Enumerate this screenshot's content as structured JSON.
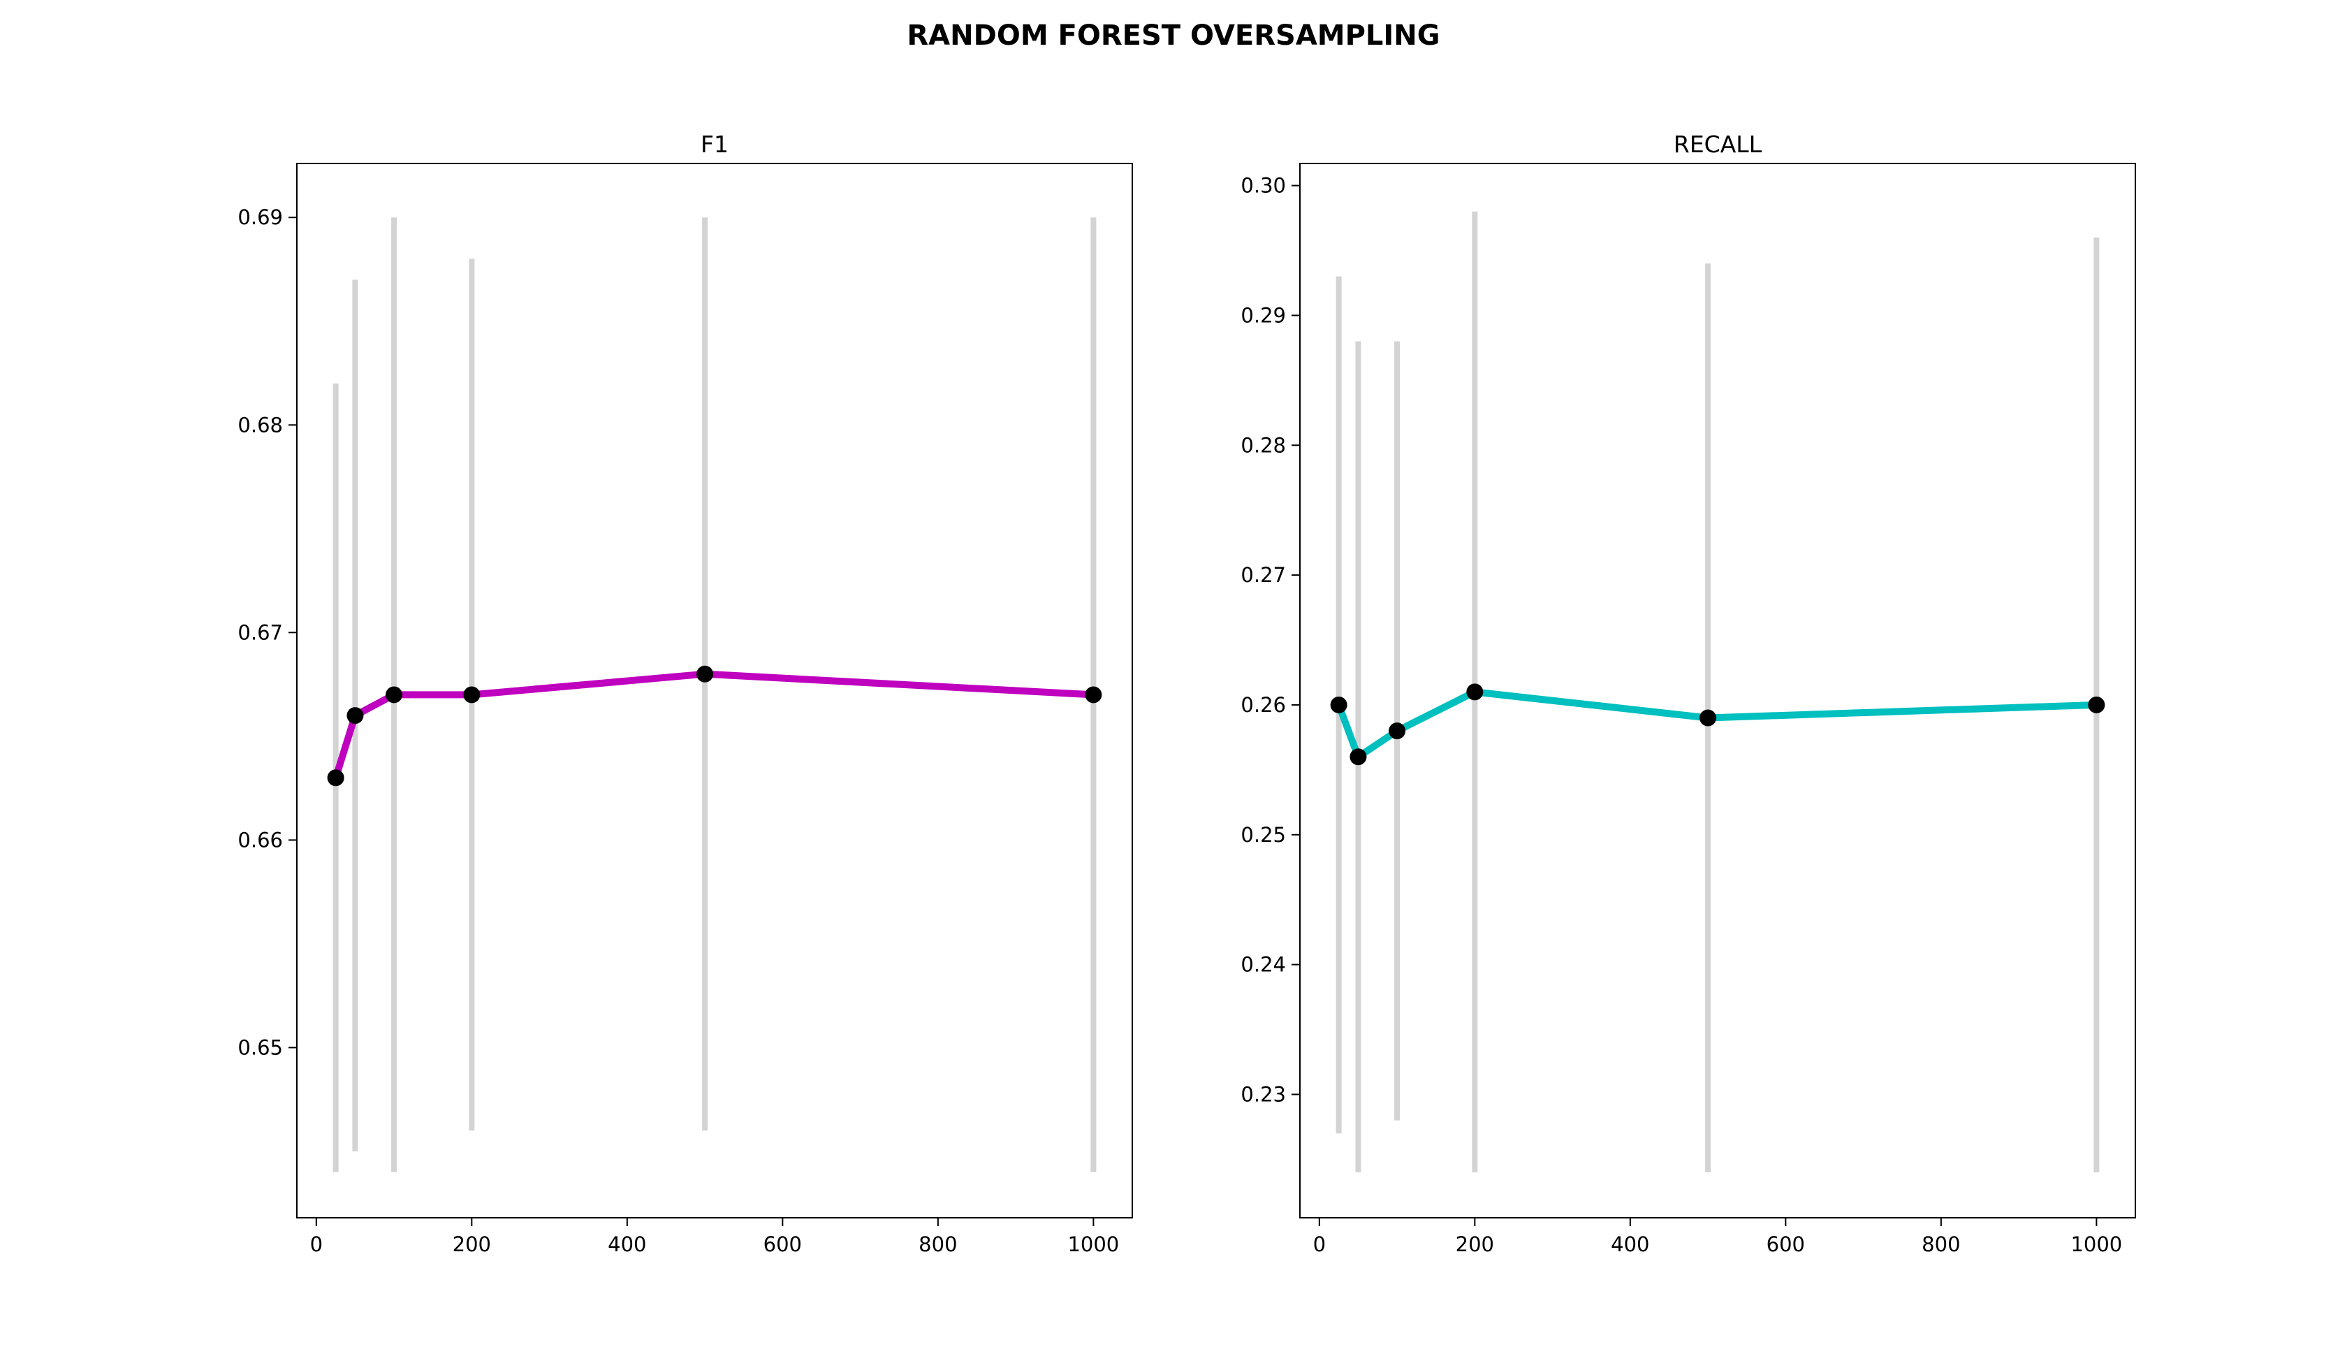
{
  "figure": {
    "title": "RANDOM FOREST OVERSAMPLING"
  },
  "chart_data": [
    {
      "type": "line",
      "title": "F1",
      "xlabel": "",
      "ylabel": "",
      "x": [
        25,
        50,
        100,
        200,
        500,
        1000
      ],
      "values": [
        0.663,
        0.666,
        0.667,
        0.667,
        0.668,
        0.667
      ],
      "error_low": [
        0.644,
        0.645,
        0.644,
        0.646,
        0.646,
        0.644
      ],
      "error_high": [
        0.682,
        0.687,
        0.69,
        0.688,
        0.69,
        0.69
      ],
      "xlim": [
        -25,
        1050
      ],
      "ylim": [
        0.6418,
        0.6926
      ],
      "xticks": [
        0,
        200,
        400,
        600,
        800,
        1000
      ],
      "xtick_labels": [
        "0",
        "200",
        "400",
        "600",
        "800",
        "1000"
      ],
      "yticks": [
        0.65,
        0.66,
        0.67,
        0.68,
        0.69
      ],
      "ytick_labels": [
        "0.65",
        "0.66",
        "0.67",
        "0.68",
        "0.69"
      ],
      "line_color": "#bf00bf",
      "marker_color": "#000000",
      "error_color": "#d3d3d3",
      "grid": false
    },
    {
      "type": "line",
      "title": "RECALL",
      "xlabel": "",
      "ylabel": "",
      "x": [
        25,
        50,
        100,
        200,
        500,
        1000
      ],
      "values": [
        0.26,
        0.256,
        0.258,
        0.261,
        0.259,
        0.26
      ],
      "error_low": [
        0.227,
        0.224,
        0.228,
        0.224,
        0.224,
        0.224
      ],
      "error_high": [
        0.293,
        0.288,
        0.288,
        0.298,
        0.294,
        0.296
      ],
      "xlim": [
        -25,
        1050
      ],
      "ylim": [
        0.2205,
        0.3017
      ],
      "xticks": [
        0,
        200,
        400,
        600,
        800,
        1000
      ],
      "xtick_labels": [
        "0",
        "200",
        "400",
        "600",
        "800",
        "1000"
      ],
      "yticks": [
        0.23,
        0.24,
        0.25,
        0.26,
        0.27,
        0.28,
        0.29,
        0.3
      ],
      "ytick_labels": [
        "0.23",
        "0.24",
        "0.25",
        "0.26",
        "0.27",
        "0.28",
        "0.29",
        "0.30"
      ],
      "line_color": "#00bfbf",
      "marker_color": "#000000",
      "error_color": "#d3d3d3",
      "grid": false
    }
  ]
}
